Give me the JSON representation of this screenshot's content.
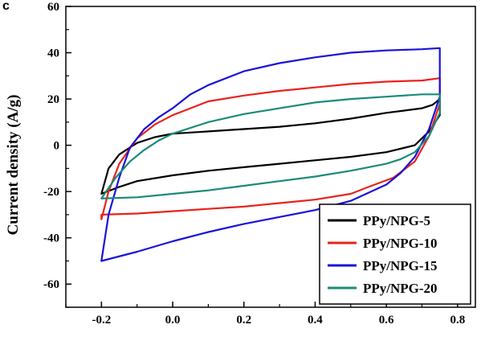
{
  "panel_letter": "c",
  "chart_data": {
    "type": "line",
    "xlabel": "",
    "ylabel": "Current density (A/g)",
    "xlim": [
      -0.3,
      0.85
    ],
    "ylim": [
      -70,
      60
    ],
    "x_ticks": [
      -0.2,
      0.0,
      0.2,
      0.4,
      0.6,
      0.8
    ],
    "x_tick_labels": [
      "-0.2",
      "0.0",
      "0.2",
      "0.4",
      "0.6",
      "0.8"
    ],
    "y_ticks": [
      -60,
      -40,
      -20,
      0,
      20,
      40,
      60
    ],
    "y_tick_labels": [
      "-60",
      "-40",
      "-20",
      "0",
      "20",
      "40",
      "60"
    ],
    "grid": false,
    "legend_position": "bottom-right",
    "series": [
      {
        "name": "PPy/NPG-5",
        "color": "#000000",
        "x": [
          -0.2,
          -0.18,
          -0.15,
          -0.1,
          -0.05,
          0.0,
          0.1,
          0.2,
          0.3,
          0.4,
          0.5,
          0.6,
          0.65,
          0.7,
          0.73,
          0.75,
          0.75,
          0.72,
          0.68,
          0.6,
          0.5,
          0.4,
          0.3,
          0.2,
          0.1,
          0.0,
          -0.1,
          -0.15,
          -0.2
        ],
        "y": [
          -21,
          -10,
          -4,
          1,
          3.5,
          5,
          6,
          7,
          8,
          9.5,
          11.5,
          14,
          15,
          16,
          17.5,
          20,
          13,
          6,
          0,
          -3,
          -5,
          -6.5,
          -8,
          -9.5,
          -11,
          -13,
          -15.5,
          -18,
          -21
        ]
      },
      {
        "name": "PPy/NPG-10",
        "color": "#e8231c",
        "x": [
          -0.2,
          -0.18,
          -0.15,
          -0.1,
          -0.05,
          0.0,
          0.05,
          0.1,
          0.2,
          0.3,
          0.4,
          0.5,
          0.6,
          0.7,
          0.75,
          0.75,
          0.72,
          0.68,
          0.62,
          0.55,
          0.5,
          0.4,
          0.3,
          0.2,
          0.1,
          0.0,
          -0.1,
          -0.2,
          -0.2
        ],
        "y": [
          -32,
          -20,
          -8,
          3,
          9,
          13,
          16,
          19,
          21.5,
          23.5,
          25,
          26.5,
          27.5,
          28,
          29,
          18,
          4,
          -7,
          -14,
          -18,
          -21,
          -23.5,
          -25,
          -26.5,
          -27.5,
          -28.5,
          -29.5,
          -30,
          -32
        ]
      },
      {
        "name": "PPy/NPG-15",
        "color": "#1a12d9",
        "x": [
          -0.2,
          -0.18,
          -0.15,
          -0.12,
          -0.08,
          -0.04,
          0.0,
          0.05,
          0.1,
          0.2,
          0.3,
          0.4,
          0.5,
          0.6,
          0.7,
          0.75,
          0.75,
          0.72,
          0.7,
          0.68,
          0.64,
          0.6,
          0.5,
          0.4,
          0.3,
          0.2,
          0.1,
          0.0,
          -0.1,
          -0.2
        ],
        "y": [
          -50,
          -30,
          -14,
          -1,
          7,
          12,
          16,
          22,
          26,
          32,
          35.5,
          38,
          40,
          41,
          41.5,
          42,
          21,
          7,
          1,
          -5,
          -12,
          -17,
          -24,
          -28,
          -31,
          -34,
          -37.5,
          -41.5,
          -46,
          -50
        ]
      },
      {
        "name": "PPy/NPG-20",
        "color": "#1a8a7a",
        "x": [
          -0.2,
          -0.16,
          -0.12,
          -0.08,
          -0.04,
          0.0,
          0.1,
          0.2,
          0.3,
          0.4,
          0.5,
          0.6,
          0.7,
          0.75,
          0.75,
          0.72,
          0.68,
          0.64,
          0.6,
          0.5,
          0.4,
          0.3,
          0.2,
          0.1,
          0.0,
          -0.1,
          -0.2
        ],
        "y": [
          -23,
          -14,
          -7,
          -2,
          2,
          5,
          10,
          13.5,
          16,
          18.5,
          20,
          21,
          22,
          22,
          14,
          4,
          -3,
          -6,
          -8,
          -11,
          -13.5,
          -15.5,
          -17.5,
          -19.5,
          -21,
          -22.5,
          -23
        ]
      }
    ]
  }
}
